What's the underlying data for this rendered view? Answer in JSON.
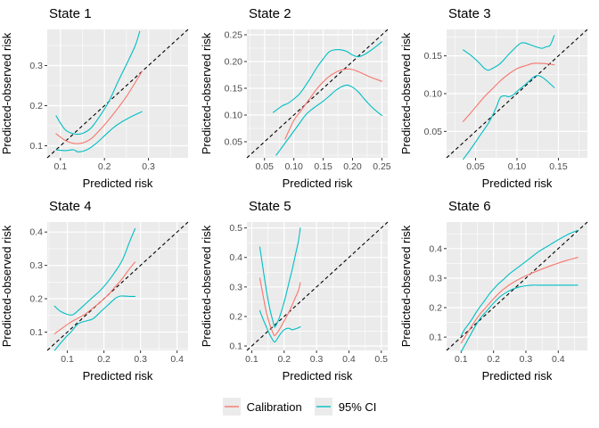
{
  "figure": {
    "background": "#FFFFFF"
  },
  "axis_labels": {
    "x": "Predicted risk",
    "y": "Predicted-observed risk"
  },
  "style": {
    "panel_bg": "#EBEBEB",
    "grid_color": "#FFFFFF",
    "tick_label_color": "#4D4D4D",
    "tick_mark_color": "#333333",
    "title_color": "#000000",
    "axis_label_color": "#000000",
    "identity_color": "#000000",
    "calibration_color": "#F8766D",
    "ci_color": "#00BFC4"
  },
  "legend": {
    "items": [
      {
        "label": "Calibration",
        "color": "#F8766D"
      },
      {
        "label": "95% CI",
        "color": "#00BFC4"
      }
    ]
  },
  "chart_data": [
    {
      "type": "line",
      "title": "State 1",
      "xlabel": "Predicted risk",
      "ylabel": "Predicted-observed risk",
      "xlim": [
        0.07,
        0.39
      ],
      "ylim": [
        0.07,
        0.39
      ],
      "x_ticks": [
        0.1,
        0.2,
        0.3
      ],
      "x_tick_labels": [
        "0.1",
        "0.2",
        "0.3"
      ],
      "y_ticks": [
        0.1,
        0.2,
        0.3
      ],
      "y_tick_labels": [
        "0.1",
        "0.2",
        "0.3"
      ],
      "grid": true,
      "identity_line": {
        "style": "dashed",
        "color": "#000000"
      },
      "series": [
        {
          "name": "Calibration",
          "color": "#F8766D",
          "x": [
            0.09,
            0.11,
            0.13,
            0.15,
            0.17,
            0.19,
            0.21,
            0.23,
            0.25,
            0.27,
            0.285
          ],
          "y": [
            0.13,
            0.114,
            0.106,
            0.107,
            0.118,
            0.14,
            0.165,
            0.193,
            0.223,
            0.258,
            0.285
          ]
        },
        {
          "name": "95% CI upper",
          "color": "#00BFC4",
          "x": [
            0.09,
            0.11,
            0.13,
            0.15,
            0.17,
            0.19,
            0.21,
            0.23,
            0.25,
            0.27,
            0.28
          ],
          "y": [
            0.175,
            0.141,
            0.13,
            0.131,
            0.145,
            0.175,
            0.21,
            0.258,
            0.303,
            0.35,
            0.385
          ]
        },
        {
          "name": "95% CI lower",
          "color": "#00BFC4",
          "x": [
            0.09,
            0.11,
            0.13,
            0.14,
            0.16,
            0.18,
            0.2,
            0.22,
            0.24,
            0.26,
            0.285
          ],
          "y": [
            0.09,
            0.088,
            0.09,
            0.085,
            0.09,
            0.105,
            0.125,
            0.145,
            0.16,
            0.172,
            0.185
          ]
        }
      ]
    },
    {
      "type": "line",
      "title": "State 2",
      "xlabel": "Predicted risk",
      "ylabel": "Predicted-observed risk",
      "xlim": [
        0.02,
        0.26
      ],
      "ylim": [
        0.02,
        0.26
      ],
      "x_ticks": [
        0.05,
        0.1,
        0.15,
        0.2,
        0.25
      ],
      "x_tick_labels": [
        "0.05",
        "0.10",
        "0.15",
        "0.20",
        "0.25"
      ],
      "y_ticks": [
        0.05,
        0.1,
        0.15,
        0.2,
        0.25
      ],
      "y_tick_labels": [
        "0.05",
        "0.10",
        "0.15",
        "0.20",
        "0.25"
      ],
      "grid": true,
      "identity_line": {
        "style": "dashed",
        "color": "#000000"
      },
      "series": [
        {
          "name": "Calibration",
          "color": "#F8766D",
          "x": [
            0.085,
            0.1,
            0.11,
            0.12,
            0.13,
            0.14,
            0.15,
            0.16,
            0.17,
            0.18,
            0.19,
            0.2,
            0.21,
            0.22,
            0.23,
            0.24,
            0.25
          ],
          "y": [
            0.055,
            0.09,
            0.105,
            0.12,
            0.135,
            0.15,
            0.162,
            0.172,
            0.179,
            0.184,
            0.186,
            0.185,
            0.181,
            0.176,
            0.171,
            0.167,
            0.163
          ]
        },
        {
          "name": "95% CI upper",
          "color": "#00BFC4",
          "x": [
            0.065,
            0.08,
            0.09,
            0.1,
            0.11,
            0.12,
            0.13,
            0.14,
            0.15,
            0.16,
            0.17,
            0.18,
            0.19,
            0.2,
            0.21,
            0.22,
            0.23,
            0.24,
            0.25
          ],
          "y": [
            0.105,
            0.117,
            0.122,
            0.13,
            0.14,
            0.155,
            0.172,
            0.19,
            0.205,
            0.218,
            0.222,
            0.222,
            0.219,
            0.212,
            0.209,
            0.213,
            0.22,
            0.228,
            0.237
          ]
        },
        {
          "name": "95% CI lower",
          "color": "#00BFC4",
          "x": [
            0.07,
            0.08,
            0.09,
            0.1,
            0.11,
            0.12,
            0.13,
            0.14,
            0.15,
            0.16,
            0.17,
            0.18,
            0.19,
            0.2,
            0.21,
            0.22,
            0.23,
            0.24,
            0.25
          ],
          "y": [
            0.025,
            0.04,
            0.055,
            0.07,
            0.085,
            0.1,
            0.11,
            0.118,
            0.126,
            0.135,
            0.145,
            0.152,
            0.156,
            0.152,
            0.143,
            0.13,
            0.118,
            0.108,
            0.099
          ]
        }
      ]
    },
    {
      "type": "line",
      "title": "State 3",
      "xlabel": "Predicted risk",
      "ylabel": "Predicted-observed risk",
      "xlim": [
        0.015,
        0.185
      ],
      "ylim": [
        0.015,
        0.185
      ],
      "x_ticks": [
        0.05,
        0.1,
        0.15
      ],
      "x_tick_labels": [
        "0.05",
        "0.10",
        "0.15"
      ],
      "y_ticks": [
        0.05,
        0.1,
        0.15
      ],
      "y_tick_labels": [
        "0.05",
        "0.10",
        "0.15"
      ],
      "grid": true,
      "identity_line": {
        "style": "dashed",
        "color": "#000000"
      },
      "series": [
        {
          "name": "Calibration",
          "color": "#F8766D",
          "x": [
            0.035,
            0.05,
            0.06,
            0.07,
            0.08,
            0.09,
            0.1,
            0.11,
            0.12,
            0.13,
            0.14,
            0.145
          ],
          "y": [
            0.063,
            0.082,
            0.095,
            0.106,
            0.117,
            0.126,
            0.133,
            0.137,
            0.14,
            0.14,
            0.139,
            0.138
          ]
        },
        {
          "name": "95% CI upper",
          "color": "#00BFC4",
          "x": [
            0.035,
            0.045,
            0.055,
            0.06,
            0.065,
            0.07,
            0.08,
            0.09,
            0.1,
            0.105,
            0.11,
            0.12,
            0.13,
            0.135,
            0.14,
            0.145
          ],
          "y": [
            0.158,
            0.15,
            0.14,
            0.134,
            0.131,
            0.133,
            0.14,
            0.152,
            0.163,
            0.167,
            0.167,
            0.163,
            0.16,
            0.162,
            0.164,
            0.177
          ]
        },
        {
          "name": "95% CI lower",
          "color": "#00BFC4",
          "x": [
            0.035,
            0.045,
            0.055,
            0.065,
            0.07,
            0.075,
            0.08,
            0.085,
            0.09,
            0.095,
            0.1,
            0.11,
            0.12,
            0.125,
            0.13,
            0.135,
            0.14,
            0.145
          ],
          "y": [
            0.013,
            0.028,
            0.044,
            0.06,
            0.07,
            0.082,
            0.095,
            0.097,
            0.096,
            0.098,
            0.103,
            0.112,
            0.122,
            0.124,
            0.122,
            0.118,
            0.113,
            0.108
          ]
        }
      ]
    },
    {
      "type": "line",
      "title": "State 4",
      "xlabel": "Predicted risk",
      "ylabel": "Predicted-observed risk",
      "xlim": [
        0.045,
        0.43
      ],
      "ylim": [
        0.045,
        0.43
      ],
      "x_ticks": [
        0.1,
        0.2,
        0.3,
        0.4
      ],
      "x_tick_labels": [
        "0.1",
        "0.2",
        "0.3",
        "0.4"
      ],
      "y_ticks": [
        0.1,
        0.2,
        0.3,
        0.4
      ],
      "y_tick_labels": [
        "0.1",
        "0.2",
        "0.3",
        "0.4"
      ],
      "grid": true,
      "identity_line": {
        "style": "dashed",
        "color": "#000000"
      },
      "series": [
        {
          "name": "Calibration",
          "color": "#F8766D",
          "x": [
            0.065,
            0.09,
            0.11,
            0.13,
            0.15,
            0.17,
            0.19,
            0.21,
            0.23,
            0.25,
            0.27,
            0.285
          ],
          "y": [
            0.095,
            0.115,
            0.13,
            0.142,
            0.155,
            0.172,
            0.19,
            0.21,
            0.235,
            0.26,
            0.29,
            0.31
          ]
        },
        {
          "name": "95% CI upper",
          "color": "#00BFC4",
          "x": [
            0.065,
            0.08,
            0.1,
            0.115,
            0.13,
            0.15,
            0.17,
            0.19,
            0.21,
            0.23,
            0.25,
            0.27,
            0.285
          ],
          "y": [
            0.178,
            0.163,
            0.153,
            0.152,
            0.165,
            0.185,
            0.205,
            0.225,
            0.25,
            0.28,
            0.315,
            0.37,
            0.41
          ]
        },
        {
          "name": "95% CI lower",
          "color": "#00BFC4",
          "x": [
            0.065,
            0.08,
            0.1,
            0.11,
            0.13,
            0.15,
            0.17,
            0.19,
            0.21,
            0.23,
            0.245,
            0.27,
            0.285
          ],
          "y": [
            0.045,
            0.065,
            0.09,
            0.1,
            0.125,
            0.133,
            0.14,
            0.16,
            0.18,
            0.2,
            0.208,
            0.207,
            0.207
          ]
        }
      ]
    },
    {
      "type": "line",
      "title": "State 5",
      "xlabel": "Predicted risk",
      "ylabel": "Predicted-observed risk",
      "xlim": [
        0.085,
        0.52
      ],
      "ylim": [
        0.085,
        0.52
      ],
      "x_ticks": [
        0.1,
        0.2,
        0.3,
        0.4,
        0.5
      ],
      "x_tick_labels": [
        "0.1",
        "0.2",
        "0.3",
        "0.4",
        "0.5"
      ],
      "y_ticks": [
        0.1,
        0.2,
        0.3,
        0.4,
        0.5
      ],
      "y_tick_labels": [
        "0.1",
        "0.2",
        "0.3",
        "0.4",
        "0.5"
      ],
      "grid": true,
      "identity_line": {
        "style": "dashed",
        "color": "#000000"
      },
      "series": [
        {
          "name": "Calibration",
          "color": "#F8766D",
          "x": [
            0.125,
            0.135,
            0.145,
            0.155,
            0.165,
            0.17,
            0.175,
            0.185,
            0.195,
            0.205,
            0.215,
            0.225,
            0.235,
            0.245,
            0.25
          ],
          "y": [
            0.33,
            0.27,
            0.215,
            0.175,
            0.145,
            0.135,
            0.14,
            0.155,
            0.175,
            0.195,
            0.215,
            0.24,
            0.265,
            0.29,
            0.315
          ]
        },
        {
          "name": "95% CI upper",
          "color": "#00BFC4",
          "x": [
            0.125,
            0.135,
            0.145,
            0.155,
            0.165,
            0.17,
            0.175,
            0.185,
            0.195,
            0.205,
            0.215,
            0.225,
            0.235,
            0.245,
            0.25
          ],
          "y": [
            0.435,
            0.36,
            0.29,
            0.23,
            0.185,
            0.165,
            0.17,
            0.195,
            0.23,
            0.27,
            0.315,
            0.36,
            0.41,
            0.46,
            0.5
          ]
        },
        {
          "name": "95% CI lower",
          "color": "#00BFC4",
          "x": [
            0.125,
            0.135,
            0.145,
            0.155,
            0.165,
            0.17,
            0.175,
            0.185,
            0.195,
            0.205,
            0.215,
            0.225,
            0.235,
            0.245,
            0.25
          ],
          "y": [
            0.22,
            0.19,
            0.165,
            0.14,
            0.12,
            0.113,
            0.118,
            0.135,
            0.15,
            0.158,
            0.16,
            0.155,
            0.158,
            0.162,
            0.165
          ]
        }
      ]
    },
    {
      "type": "line",
      "title": "State 6",
      "xlabel": "Predicted risk",
      "ylabel": "Predicted-observed risk",
      "xlim": [
        0.055,
        0.49
      ],
      "ylim": [
        0.055,
        0.49
      ],
      "x_ticks": [
        0.1,
        0.2,
        0.3,
        0.4
      ],
      "x_tick_labels": [
        "0.1",
        "0.2",
        "0.3",
        "0.4"
      ],
      "y_ticks": [
        0.1,
        0.2,
        0.3,
        0.4
      ],
      "y_tick_labels": [
        "0.1",
        "0.2",
        "0.3",
        "0.4"
      ],
      "grid": true,
      "identity_line": {
        "style": "dashed",
        "color": "#000000"
      },
      "series": [
        {
          "name": "Calibration",
          "color": "#F8766D",
          "x": [
            0.1,
            0.12,
            0.14,
            0.16,
            0.18,
            0.2,
            0.22,
            0.24,
            0.26,
            0.28,
            0.3,
            0.33,
            0.36,
            0.39,
            0.42,
            0.46
          ],
          "y": [
            0.08,
            0.115,
            0.15,
            0.18,
            0.205,
            0.23,
            0.252,
            0.27,
            0.285,
            0.297,
            0.308,
            0.322,
            0.335,
            0.347,
            0.358,
            0.37
          ]
        },
        {
          "name": "95% CI upper",
          "color": "#00BFC4",
          "x": [
            0.1,
            0.11,
            0.13,
            0.15,
            0.17,
            0.19,
            0.21,
            0.23,
            0.25,
            0.28,
            0.31,
            0.34,
            0.37,
            0.4,
            0.43,
            0.46
          ],
          "y": [
            0.105,
            0.125,
            0.155,
            0.19,
            0.22,
            0.25,
            0.275,
            0.295,
            0.315,
            0.34,
            0.365,
            0.39,
            0.41,
            0.43,
            0.448,
            0.462
          ]
        },
        {
          "name": "95% CI lower",
          "color": "#00BFC4",
          "x": [
            0.1,
            0.12,
            0.14,
            0.16,
            0.18,
            0.2,
            0.22,
            0.24,
            0.26,
            0.28,
            0.3,
            0.32,
            0.35,
            0.4,
            0.46
          ],
          "y": [
            0.05,
            0.09,
            0.13,
            0.165,
            0.19,
            0.215,
            0.237,
            0.252,
            0.263,
            0.27,
            0.274,
            0.276,
            0.276,
            0.276,
            0.276
          ]
        }
      ]
    }
  ]
}
